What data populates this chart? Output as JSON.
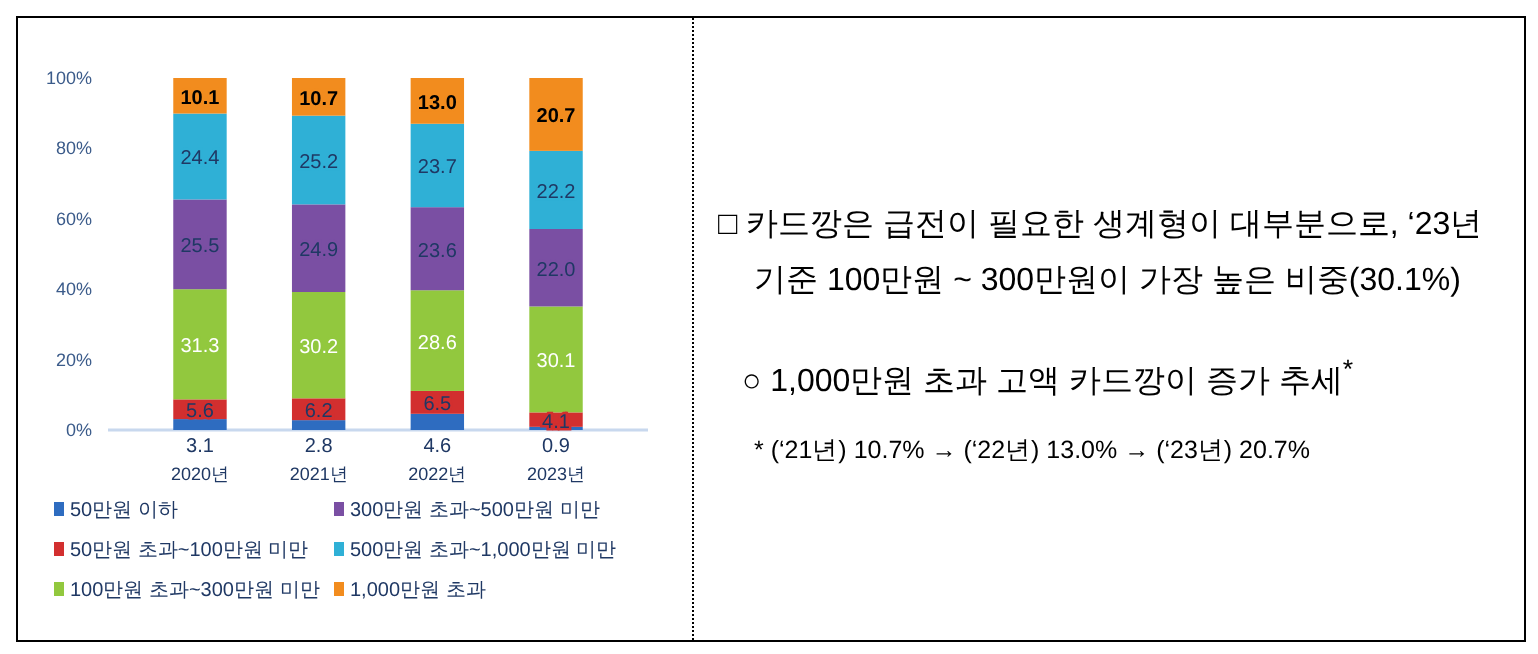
{
  "chart_data": {
    "type": "bar",
    "stacked": true,
    "categories": [
      "2020년",
      "2021년",
      "2022년",
      "2023년"
    ],
    "series": [
      {
        "name": "50만원 이하",
        "color": "#2e6cc0",
        "values": [
          3.1,
          2.8,
          4.6,
          0.9
        ],
        "value_labels": [
          "3.1",
          "2.8",
          "4.6",
          "0.9"
        ]
      },
      {
        "name": "50만원 초과~100만원 미만",
        "color": "#d22f2f",
        "values": [
          5.6,
          6.2,
          6.5,
          4.1
        ],
        "value_labels": [
          "5.6",
          "6.2",
          "6.5",
          "4.1"
        ]
      },
      {
        "name": "100만원 초과~300만원 미만",
        "color": "#92c83e",
        "values": [
          31.3,
          30.2,
          28.6,
          30.1
        ],
        "value_labels": [
          "31.3",
          "30.2",
          "28.6",
          "30.1"
        ]
      },
      {
        "name": "300만원 초과~500만원 미만",
        "color": "#7a4fa3",
        "values": [
          25.5,
          24.9,
          23.6,
          22
        ],
        "value_labels": [
          "25.5",
          "24.9",
          "23.6",
          "22.0"
        ]
      },
      {
        "name": "500만원 초과~1,000만원 미만",
        "color": "#2fb0d6",
        "values": [
          24.4,
          25.2,
          23.7,
          22.2
        ],
        "value_labels": [
          "24.4",
          "25.2",
          "23.7",
          "22.2"
        ]
      },
      {
        "name": "1,000만원 초과",
        "color": "#f28c1e",
        "values": [
          10.1,
          10.7,
          13,
          20.7
        ],
        "value_labels": [
          "10.1",
          "10.7",
          "13.0",
          "20.7"
        ]
      }
    ],
    "ylim": [
      0,
      100
    ],
    "yticks": [
      {
        "value": 0,
        "label": "0%"
      },
      {
        "value": 20,
        "label": "20%"
      },
      {
        "value": 40,
        "label": "40%"
      },
      {
        "value": 60,
        "label": "60%"
      },
      {
        "value": 80,
        "label": "80%"
      },
      {
        "value": 100,
        "label": "100%"
      }
    ],
    "legend": "bottom",
    "annotations": [
      "□ 카드깡은 급전이 필요한 생계형이 대부분으로, ‘23년 기준 100만원 ~ 300만원이 가장 높은 비중(30.1%)",
      "○ 1,000만원 초과 고액 카드깡이 증가 추세$^{*}$",
      "* (‘21년) 10.7% → (‘22년) 13.0% → (‘23년) 20.7%"
    ]
  }
}
